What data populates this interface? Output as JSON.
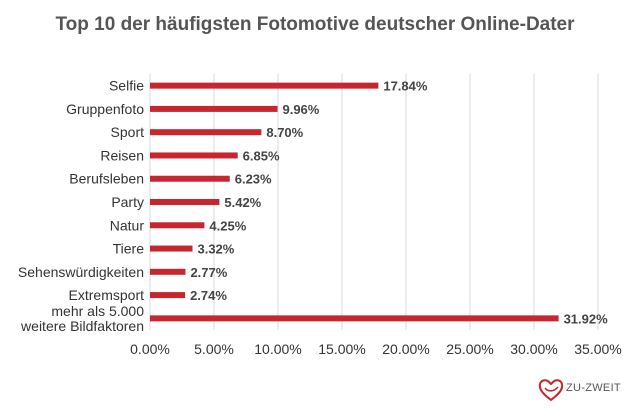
{
  "chart_data": {
    "type": "bar",
    "orientation": "horizontal",
    "title": "Top 10 der häufigsten Fotomotive deutscher Online-Dater",
    "categories": [
      "Selfie",
      "Gruppenfoto",
      "Sport",
      "Reisen",
      "Berufsleben",
      "Party",
      "Natur",
      "Tiere",
      "Sehenswürdigkeiten",
      "Extremsport",
      "mehr als 5.000\nweitere Bildfaktoren"
    ],
    "values": [
      17.84,
      9.96,
      8.7,
      6.85,
      6.23,
      5.42,
      4.25,
      3.32,
      2.77,
      2.74,
      31.92
    ],
    "value_labels": [
      "17.84%",
      "9.96%",
      "8.70%",
      "6.85%",
      "6.23%",
      "5.42%",
      "4.25%",
      "3.32%",
      "2.77%",
      "2.74%",
      "31.92%"
    ],
    "xlim": [
      0,
      35
    ],
    "xticks": [
      "0.00%",
      "5.00%",
      "10.00%",
      "15.00%",
      "20.00%",
      "25.00%",
      "30.00%",
      "35.00%"
    ],
    "grid": true,
    "bar_color": "#c8262e"
  },
  "logo": {
    "text": "ZU-ZWEIT"
  }
}
